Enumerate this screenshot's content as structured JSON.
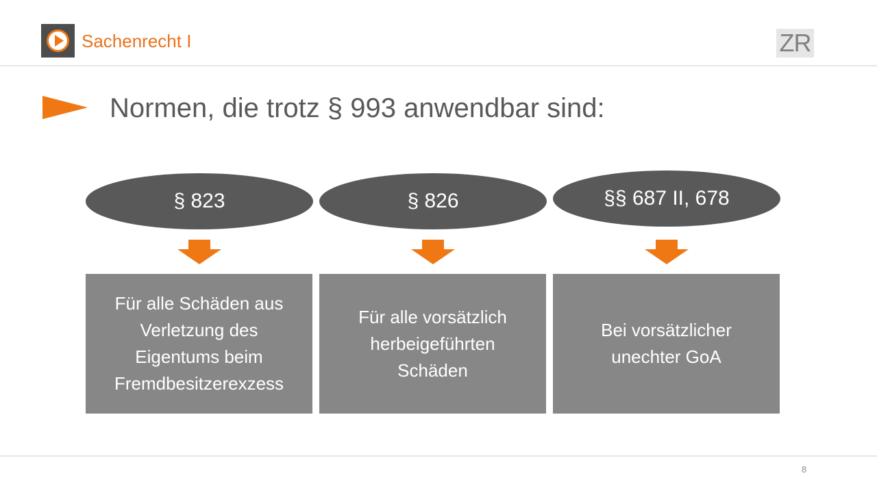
{
  "header": {
    "course_title": "Sachenrecht I",
    "badge": "ZR",
    "logo_icon": "play-circle-icon"
  },
  "slide": {
    "title": "Normen, die trotz § 993 anwendbar sind:",
    "columns": [
      {
        "norm": "§ 823",
        "description": "Für alle Schäden aus\nVerletzung des\nEigentums beim\nFremdbesitzerexzess"
      },
      {
        "norm": "§ 826",
        "description": "Für alle vorsätzlich\nherbeigeführten\nSchäden"
      },
      {
        "norm": "§§ 687 II, 678",
        "description": "Bei vorsätzlicher\nunechter GoA"
      }
    ]
  },
  "footer": {
    "page_number": "8"
  },
  "colors": {
    "accent": "#f07814",
    "oval": "#595959",
    "box": "#878787",
    "title": "#595959"
  }
}
